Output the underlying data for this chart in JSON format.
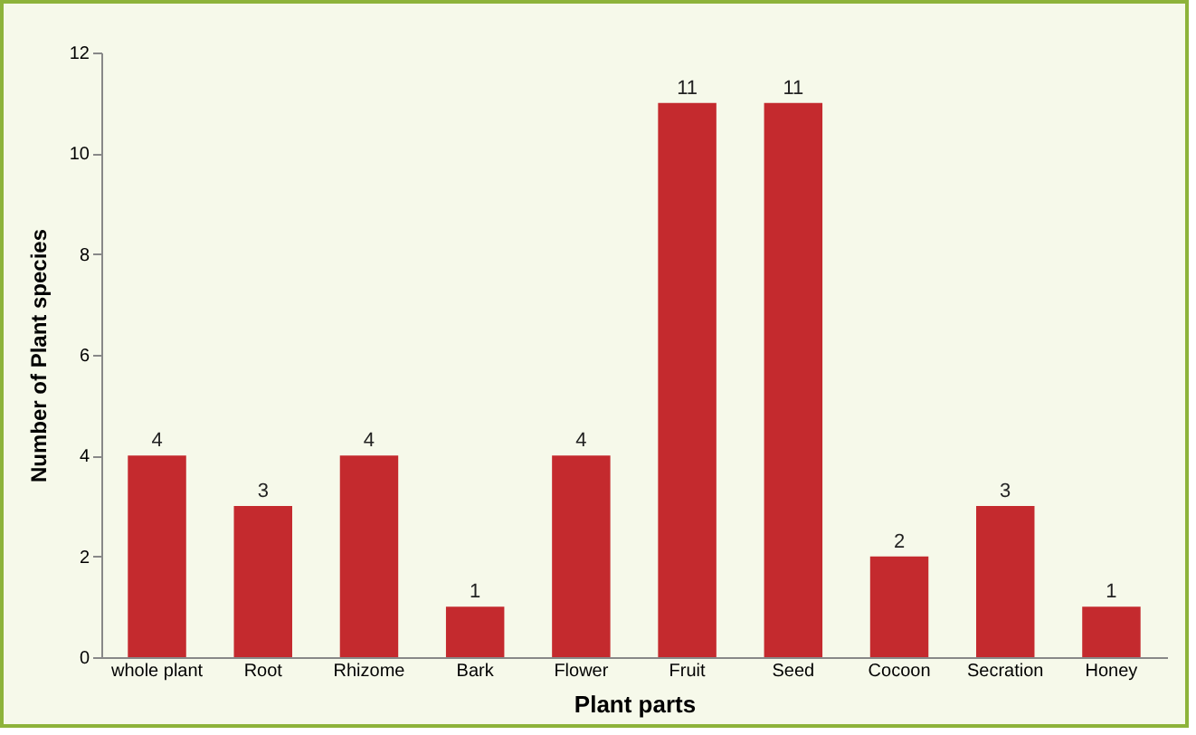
{
  "chart_data": {
    "type": "bar",
    "xlabel": "Plant parts",
    "ylabel": "Number of Plant species",
    "categories": [
      "whole plant",
      "Root",
      "Rhizome",
      "Bark",
      "Flower",
      "Fruit",
      "Seed",
      "Cocoon",
      "Secration",
      "Honey"
    ],
    "values": [
      4,
      3,
      4,
      1,
      4,
      11,
      11,
      2,
      3,
      1
    ],
    "color": "#c42a2e",
    "ylim": [
      0,
      12
    ],
    "yticks": [
      0,
      2,
      4,
      6,
      8,
      10,
      12
    ],
    "data_labels": true,
    "grid": false
  }
}
